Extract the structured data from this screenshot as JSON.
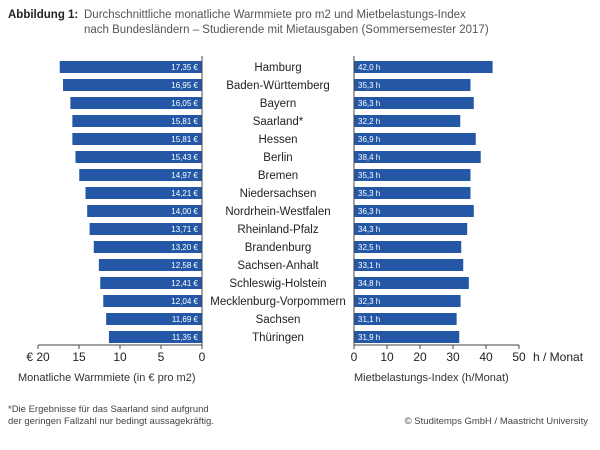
{
  "header": {
    "label": "Abbildung 1:",
    "line1": "Durchschnittliche monatliche Warmmiete pro m2 und Mietbelastungs-Index",
    "line2": "nach Bundesländern – Studierende mit Mietausgaben (Sommersemester 2017)"
  },
  "footer": {
    "note_line1": "*Die Ergebnisse für das Saarland sind aufgrund",
    "note_line2": "der geringen Fallzahl nur bedingt aussagekräftig.",
    "copyright": "© Studitemps GmbH / Maastricht University"
  },
  "colors": {
    "bar": "#2458a7",
    "bar_text": "#ffffff",
    "axis": "#444444"
  },
  "chart_data": [
    {
      "type": "bar",
      "orientation": "horizontal-reversed",
      "categories": [
        "Hamburg",
        "Baden-Württemberg",
        "Bayern",
        "Saarland*",
        "Hessen",
        "Berlin",
        "Bremen",
        "Niedersachsen",
        "Nordrhein-Westfalen",
        "Rheinland-Pfalz",
        "Brandenburg",
        "Sachsen-Anhalt",
        "Schleswig-Holstein",
        "Mecklenburg-Vorpommern",
        "Sachsen",
        "Thüringen"
      ],
      "values": [
        17.35,
        16.95,
        16.05,
        15.81,
        15.81,
        15.43,
        14.97,
        14.21,
        14.0,
        13.71,
        13.2,
        12.58,
        12.41,
        12.04,
        11.69,
        11.35
      ],
      "value_labels": [
        "17,35 €",
        "16,95 €",
        "16,05 €",
        "15,81 €",
        "15,81 €",
        "15,43 €",
        "14,97 €",
        "14,21 €",
        "14,00 €",
        "13,71 €",
        "13,20 €",
        "12,58 €",
        "12,41 €",
        "12,04 €",
        "11,69 €",
        "11,35 €"
      ],
      "xlim": [
        0,
        20
      ],
      "ticks": [
        20,
        15,
        10,
        5,
        0
      ],
      "tick_labels": [
        "€ 20",
        "15",
        "10",
        "5",
        "0"
      ],
      "xlabel": "Monatliche Warmmiete (in € pro m2)"
    },
    {
      "type": "bar",
      "orientation": "horizontal",
      "categories": [
        "Hamburg",
        "Baden-Württemberg",
        "Bayern",
        "Saarland*",
        "Hessen",
        "Berlin",
        "Bremen",
        "Niedersachsen",
        "Nordrhein-Westfalen",
        "Rheinland-Pfalz",
        "Brandenburg",
        "Sachsen-Anhalt",
        "Schleswig-Holstein",
        "Mecklenburg-Vorpommern",
        "Sachsen",
        "Thüringen"
      ],
      "values": [
        42.0,
        35.3,
        36.3,
        32.2,
        36.9,
        38.4,
        35.3,
        35.3,
        36.3,
        34.3,
        32.5,
        33.1,
        34.8,
        32.3,
        31.1,
        31.9
      ],
      "value_labels": [
        "42,0 h",
        "35,3 h",
        "36,3 h",
        "32,2 h",
        "36,9 h",
        "38,4 h",
        "35,3 h",
        "35,3 h",
        "36,3 h",
        "34,3 h",
        "32,5 h",
        "33,1 h",
        "34,8 h",
        "32,3 h",
        "31,1 h",
        "31,9 h"
      ],
      "xlim": [
        0,
        50
      ],
      "ticks": [
        0,
        10,
        20,
        30,
        40,
        50
      ],
      "tick_labels": [
        "0",
        "10",
        "20",
        "30",
        "40",
        "50"
      ],
      "unit_label": "h / Monat",
      "xlabel": "Mietbelastungs-Index (h/Monat)"
    }
  ]
}
